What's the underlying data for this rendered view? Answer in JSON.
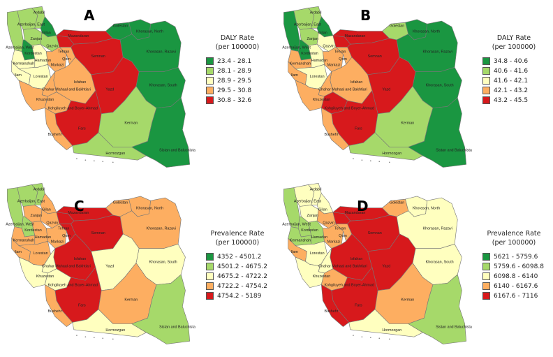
{
  "colors": {
    "c1": "#1a9641",
    "c2": "#a6d96a",
    "c3": "#ffffbf",
    "c4": "#fdae61",
    "c5": "#d7191c"
  },
  "province_names": {
    "ardabil": "Ardabil",
    "azarbaijan_east": "Azerbaijan, East",
    "azarbaijan_west": "Azerbaijan, West",
    "gilan": "Gilan",
    "zanjan": "Zanjan",
    "qazvin": "Qazvin",
    "kordestan": "Kordestan",
    "hamadan": "Hamadan",
    "kermanshah": "Kermanshah",
    "ilam": "Ilam",
    "lorestan": "Lorestan",
    "markazi": "Markazi",
    "qom": "Qom",
    "tehran": "Tehran",
    "mazandaran": "Mazandaran",
    "golestan": "Golestan",
    "semnan": "Semnan",
    "khorasan_north": "Khorasan, North",
    "khorasan_razavi": "Khorasan, Razavi",
    "khorasan_south": "Khorasan, South",
    "isfahan": "Isfahan",
    "chahar": "Chahar Mahaal and Bakhtiari",
    "khuzestan": "Khuzestan",
    "kohgiluyeh": "Kohgiluyeh and Boyer-Ahmad",
    "yazd": "Yazd",
    "fars": "Fars",
    "bushehr": "Bushehr",
    "kerman": "Kerman",
    "hormozgan": "Hormozgan",
    "sistan": "Sistan and Baluchistan"
  },
  "panels": [
    {
      "letter": "A",
      "legend": {
        "title_line1": "DALY Rate",
        "title_line2": "(per 100000)",
        "ranges": [
          "23.4 - 28.1",
          "28.1 - 28.9",
          "28.9 - 29.5",
          "29.5 - 30.8",
          "30.8 - 32.6"
        ]
      },
      "classes": {
        "azarbaijan_west": 2,
        "azarbaijan_east": 2,
        "ardabil": 2,
        "gilan": 1,
        "zanjan": 2,
        "kordestan": 1,
        "qazvin": 2,
        "kermanshah": 3,
        "hamadan": 3,
        "ilam": 3,
        "lorestan": 3,
        "markazi": 4,
        "qom": 4,
        "tehran": 5,
        "mazandaran": 5,
        "golestan": 1,
        "semnan": 5,
        "khorasan_north": 1,
        "khorasan_razavi": 1,
        "khorasan_south": 1,
        "isfahan": 4,
        "yazd": 5,
        "chahar": 4,
        "khuzestan": 4,
        "kohgiluyeh": 4,
        "fars": 5,
        "bushehr": 4,
        "kerman": 2,
        "hormozgan": 2,
        "sistan": 1
      }
    },
    {
      "letter": "B",
      "legend": {
        "title_line1": "DALY Rate",
        "title_line2": "(per 100000)",
        "ranges": [
          "34.8 - 40.6",
          "40.6 - 41.6",
          "41.6 - 42.1",
          "42.1 - 43.2",
          "43.2 - 45.5"
        ]
      },
      "classes": {
        "azarbaijan_west": 1,
        "azarbaijan_east": 2,
        "ardabil": 2,
        "gilan": 1,
        "zanjan": 2,
        "kordestan": 1,
        "qazvin": 3,
        "kermanshah": 4,
        "hamadan": 3,
        "ilam": 4,
        "lorestan": 3,
        "markazi": 4,
        "qom": 4,
        "tehran": 5,
        "mazandaran": 5,
        "golestan": 2,
        "semnan": 5,
        "khorasan_north": 1,
        "khorasan_razavi": 1,
        "khorasan_south": 1,
        "isfahan": 4,
        "yazd": 5,
        "chahar": 4,
        "khuzestan": 4,
        "kohgiluyeh": 5,
        "fars": 5,
        "bushehr": 4,
        "kerman": 2,
        "hormozgan": 2,
        "sistan": 1
      }
    },
    {
      "letter": "C",
      "legend": {
        "title_line1": "Prevalence Rate",
        "title_line2": "(per 100000)",
        "ranges": [
          "4352 - 4501.2",
          "4501.2 - 4675.2",
          "4675.2 - 4722.2",
          "4722.2 - 4754.2",
          "4754.2 - 5189"
        ]
      },
      "classes": {
        "azarbaijan_west": 2,
        "azarbaijan_east": 2,
        "ardabil": 2,
        "gilan": 4,
        "zanjan": 4,
        "kordestan": 2,
        "qazvin": 4,
        "kermanshah": 4,
        "hamadan": 4,
        "ilam": 4,
        "lorestan": 4,
        "markazi": 4,
        "qom": 5,
        "tehran": 5,
        "mazandaran": 5,
        "golestan": 4,
        "semnan": 5,
        "khorasan_north": 4,
        "khorasan_razavi": 4,
        "khorasan_south": 3,
        "isfahan": 5,
        "yazd": 3,
        "chahar": 3,
        "khuzestan": 3,
        "kohgiluyeh": 3,
        "fars": 5,
        "bushehr": 4,
        "kerman": 4,
        "hormozgan": 3,
        "sistan": 2
      }
    },
    {
      "letter": "D",
      "legend": {
        "title_line1": "Prevalence Rate",
        "title_line2": "(per 100000)",
        "ranges": [
          "5621 - 5759.6",
          "5759.6 - 6098.8",
          "6098.8 - 6140",
          "6140 - 6167.6",
          "6167.6 - 7116"
        ]
      },
      "classes": {
        "azarbaijan_west": 2,
        "azarbaijan_east": 3,
        "ardabil": 3,
        "gilan": 3,
        "zanjan": 3,
        "kordestan": 2,
        "qazvin": 4,
        "kermanshah": 2,
        "hamadan": 2,
        "ilam": 4,
        "lorestan": 3,
        "markazi": 4,
        "qom": 4,
        "tehran": 5,
        "mazandaran": 5,
        "golestan": 4,
        "semnan": 5,
        "khorasan_north": 3,
        "khorasan_razavi": 3,
        "khorasan_south": 3,
        "isfahan": 5,
        "yazd": 5,
        "chahar": 3,
        "khuzestan": 3,
        "kohgiluyeh": 4,
        "fars": 5,
        "bushehr": 5,
        "kerman": 4,
        "hormozgan": 3,
        "sistan": 2
      }
    }
  ]
}
